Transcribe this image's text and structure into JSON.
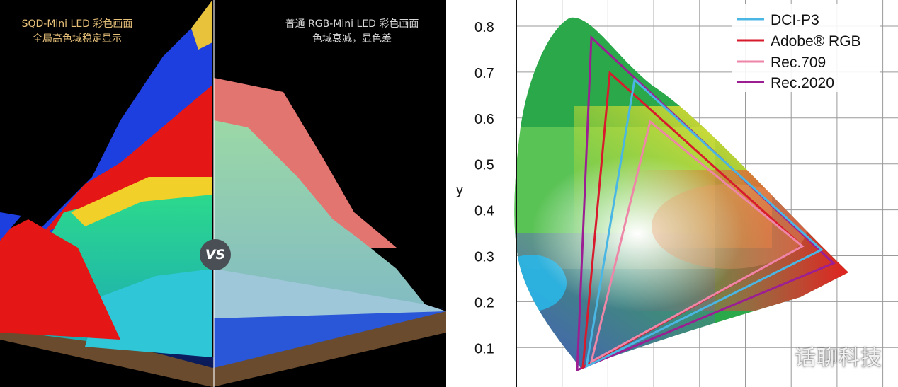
{
  "left": {
    "caption_left_line1": "SQD-Mini LED 彩色画面",
    "caption_left_line2": "全局高色域稳定显示",
    "caption_right_line1": "普通 RGB-Mini LED 彩色画面",
    "caption_right_line2": "色域衰减，显色差",
    "vs_label": "VS"
  },
  "colors": {
    "dci_p3": "#4ab6e4",
    "adobe_rgb": "#d81b2c",
    "rec709": "#ee86a7",
    "rec2020": "#9b1f93"
  },
  "chart_data": {
    "type": "other",
    "ylabel": "y",
    "y_ticks": [
      "0.1",
      "0.2",
      "0.3",
      "0.4",
      "0.5",
      "0.6",
      "0.7",
      "0.8"
    ],
    "legend": [
      "DCI-P3",
      "Adobe® RGB",
      "Rec.709",
      "Rec.2020"
    ],
    "legend_placement": "top-right",
    "grid": true
  },
  "watermark": "话聊科技"
}
